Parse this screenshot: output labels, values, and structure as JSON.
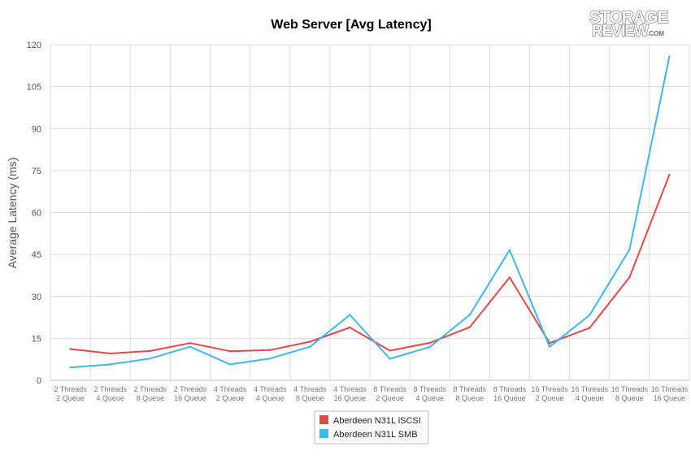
{
  "logo": {
    "line1": "STORAGE",
    "line2": "REVIEW",
    "suffix": ".COM"
  },
  "chart_data": {
    "type": "line",
    "title": "Web Server [Avg Latency]",
    "xlabel": "",
    "ylabel": "Average Latency (ms)",
    "ylim": [
      0,
      120
    ],
    "yticks": [
      0,
      15,
      30,
      45,
      60,
      75,
      90,
      105,
      120
    ],
    "grid": true,
    "legend_position": "bottom-center",
    "categories": [
      [
        "2 Threads",
        "2 Queue"
      ],
      [
        "2 Threads",
        "4 Queue"
      ],
      [
        "2 Threads",
        "8 Queue"
      ],
      [
        "2 Threads",
        "16 Queue"
      ],
      [
        "4 Threads",
        "2 Queue"
      ],
      [
        "4 Threads",
        "4 Queue"
      ],
      [
        "4 Threads",
        "8 Queue"
      ],
      [
        "4 Threads",
        "16 Queue"
      ],
      [
        "8 Threads",
        "2 Queue"
      ],
      [
        "8 Threads",
        "4 Queue"
      ],
      [
        "8 Threads",
        "8 Queue"
      ],
      [
        "8 Threads",
        "16 Queue"
      ],
      [
        "16 Threads",
        "2 Queue"
      ],
      [
        "16 Threads",
        "4 Queue"
      ],
      [
        "16 Threads",
        "8 Queue"
      ],
      [
        "16 Threads",
        "16 Queue"
      ]
    ],
    "series": [
      {
        "name": "Aberdeen N31L iSCSI",
        "color": "#e04a4a",
        "values": [
          11.2,
          9.6,
          10.5,
          13.3,
          10.4,
          10.8,
          13.8,
          18.9,
          10.6,
          13.4,
          19.0,
          36.8,
          13.3,
          18.7,
          36.8,
          73.5
        ]
      },
      {
        "name": "Aberdeen N31L SMB",
        "color": "#45b6e8",
        "values": [
          4.6,
          5.7,
          7.8,
          12.0,
          5.7,
          7.8,
          12.0,
          23.4,
          7.7,
          11.9,
          23.4,
          46.6,
          12.0,
          23.3,
          46.7,
          115.8
        ]
      }
    ]
  }
}
